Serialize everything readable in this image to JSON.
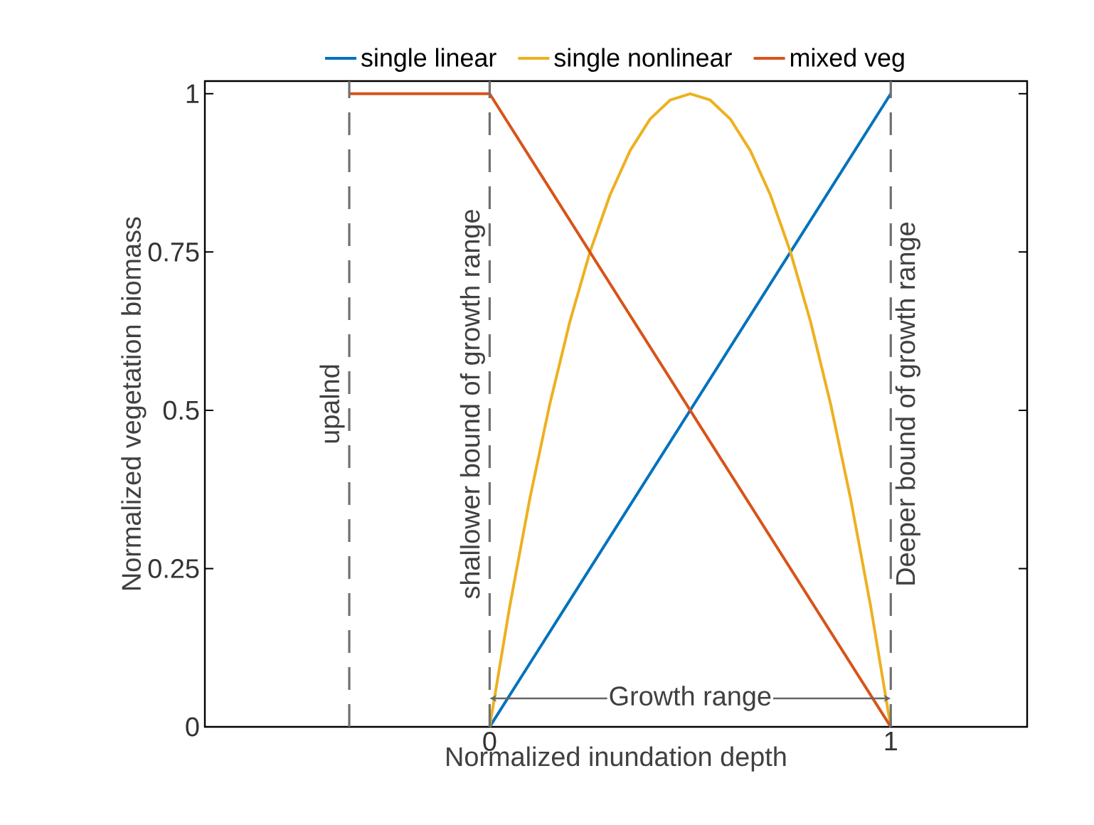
{
  "chart_data": {
    "type": "line",
    "xlabel": "Normalized inundation depth",
    "ylabel": "Normalized vegetation biomass",
    "xlim": [
      -0.71,
      1.34
    ],
    "xticks": [
      0,
      1
    ],
    "ylim": [
      0,
      1.02
    ],
    "yticks": [
      0,
      0.25,
      0.5,
      0.75,
      1
    ],
    "legend": "top",
    "grid": false,
    "marker": "none",
    "line_style": "solid",
    "series": [
      {
        "name": "single linear",
        "color": "#0072bd",
        "x": [
          0,
          1
        ],
        "values": [
          0,
          1
        ]
      },
      {
        "name": "single nonlinear",
        "color": "#edb120",
        "x": [
          0,
          0.05,
          0.1,
          0.15,
          0.2,
          0.25,
          0.3,
          0.35,
          0.4,
          0.45,
          0.5,
          0.55,
          0.6,
          0.65,
          0.7,
          0.75,
          0.8,
          0.85,
          0.9,
          0.95,
          1
        ],
        "values": [
          0,
          0.19,
          0.36,
          0.51,
          0.64,
          0.75,
          0.84,
          0.91,
          0.96,
          0.99,
          1,
          0.99,
          0.96,
          0.91,
          0.84,
          0.75,
          0.64,
          0.51,
          0.36,
          0.19,
          0
        ]
      },
      {
        "name": "mixed veg",
        "color": "#d95319",
        "x": [
          -0.35,
          0,
          1
        ],
        "values": [
          1,
          1,
          0
        ]
      }
    ],
    "ref_lines": [
      {
        "axis": "x",
        "value": -0.35,
        "label": "upalnd",
        "color": "#707070",
        "line_style": "dashed"
      },
      {
        "axis": "x",
        "value": 0,
        "label": "shallower bound of growth range",
        "color": "#707070",
        "line_style": "dashed"
      },
      {
        "axis": "x",
        "value": 1,
        "label": "Deeper bound of growth range",
        "color": "#707070",
        "line_style": "dashed"
      }
    ],
    "annotations": [
      "Growth range"
    ]
  }
}
